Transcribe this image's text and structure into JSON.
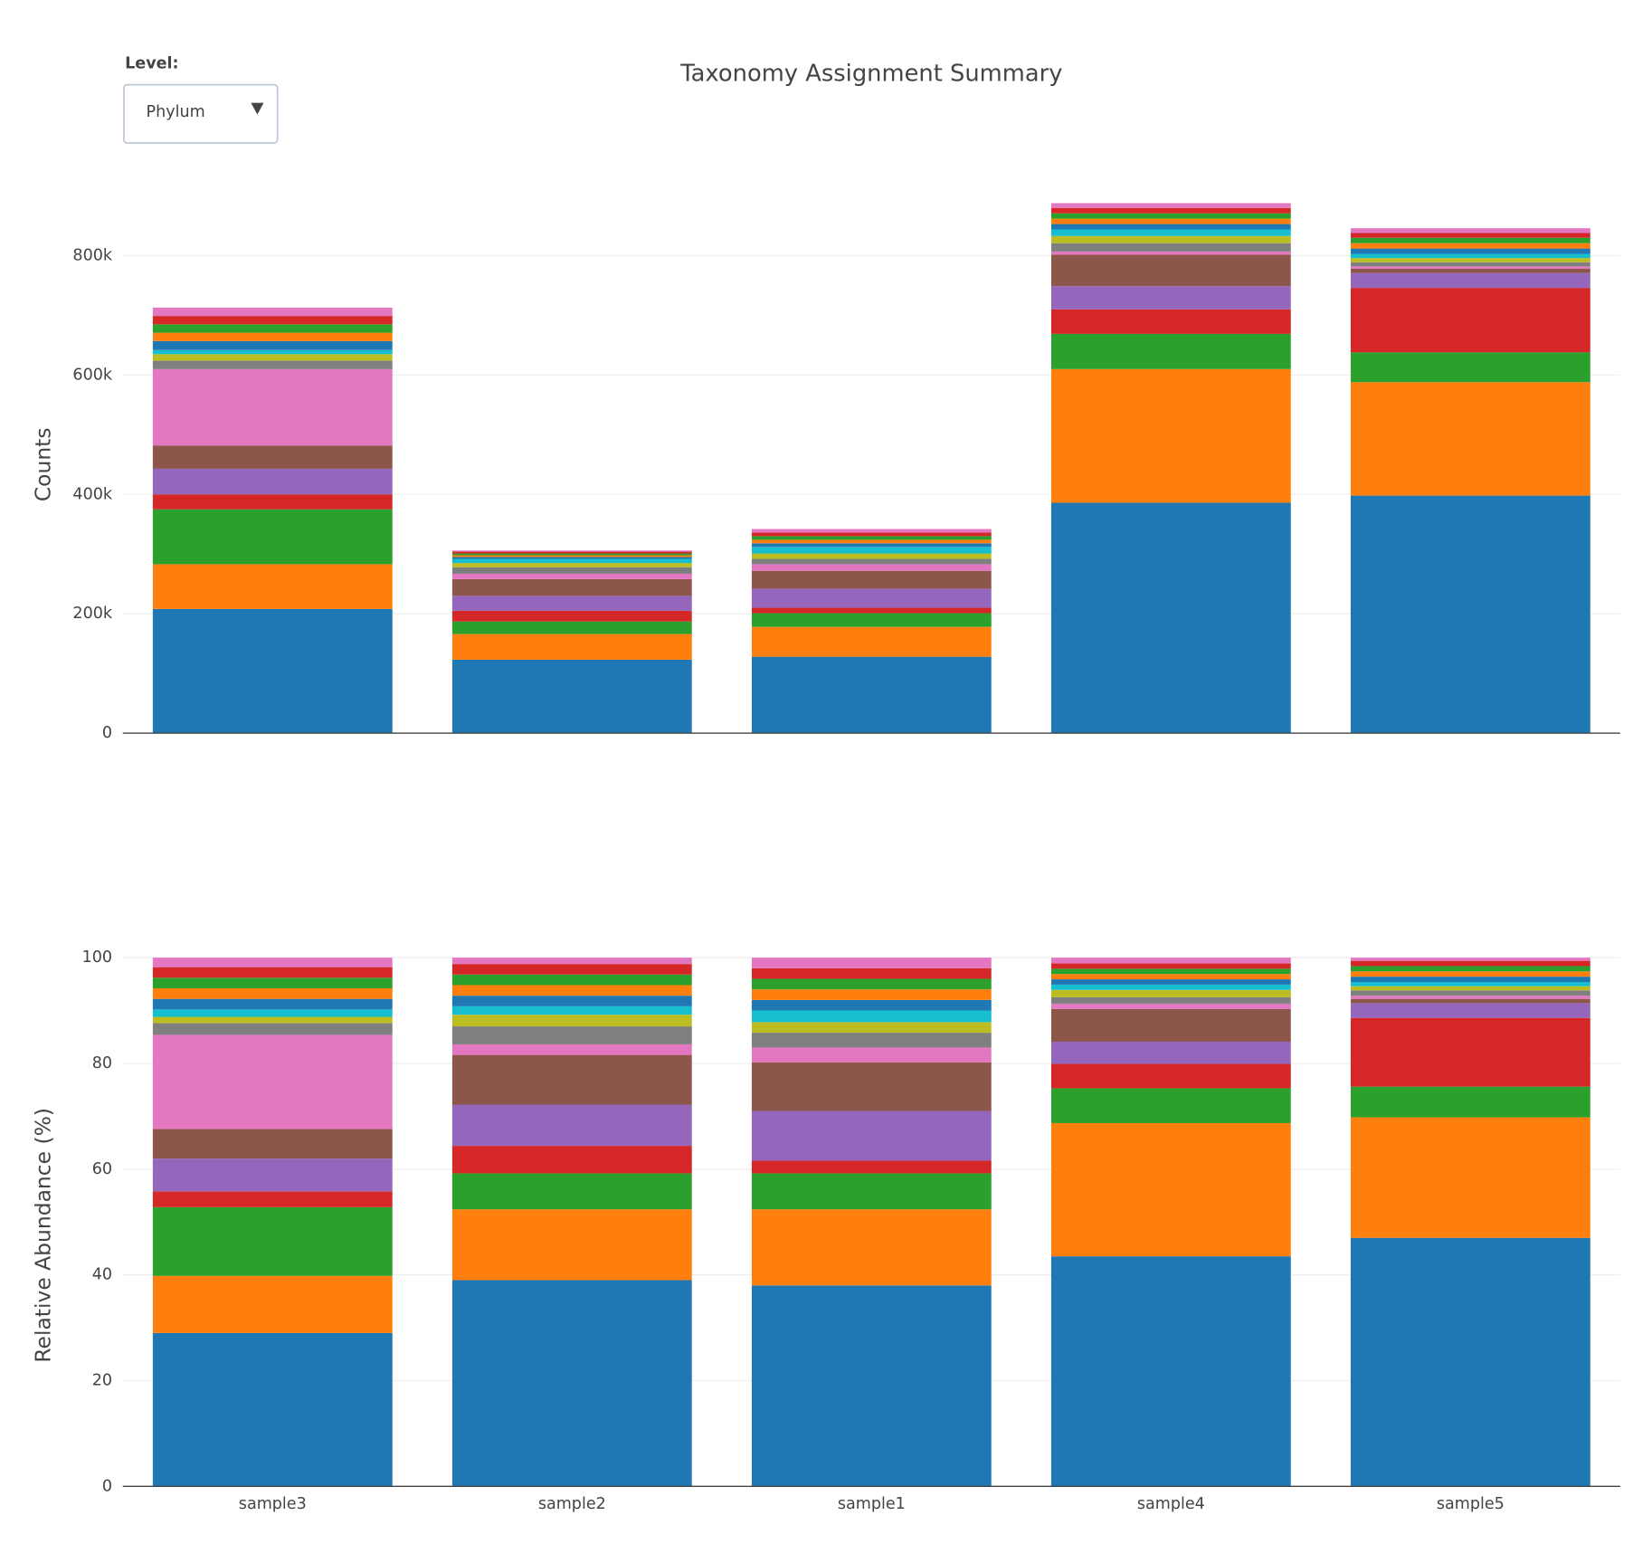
{
  "title": "Taxonomy Assignment Summary",
  "controls": {
    "label": "Level:",
    "value": "Phylum"
  },
  "chart_data": [
    {
      "type": "bar",
      "stacked": true,
      "y_label": "Counts",
      "ylim": [
        0,
        900000
      ],
      "yticks": [
        0,
        {
          "value": 200000,
          "label": "200k"
        },
        {
          "value": 400000,
          "label": "400k"
        },
        {
          "value": 600000,
          "label": "600k"
        },
        {
          "value": 800000,
          "label": "800k"
        }
      ],
      "grid": true,
      "series": [
        {
          "color": "#1f77b4",
          "values": [
            208000,
            123000,
            128000,
            386000,
            398000
          ]
        },
        {
          "color": "#ff7f0e",
          "values": [
            75000,
            43000,
            50000,
            224000,
            190000
          ]
        },
        {
          "color": "#2ca02c",
          "values": [
            92000,
            21000,
            23000,
            59000,
            50000
          ]
        },
        {
          "color": "#d62728",
          "values": [
            25000,
            18000,
            9000,
            41000,
            108000
          ]
        },
        {
          "color": "#9467bd",
          "values": [
            43000,
            25000,
            32000,
            39000,
            25000
          ]
        },
        {
          "color": "#8c564b",
          "values": [
            39000,
            28000,
            30000,
            53000,
            7000
          ]
        },
        {
          "color": "#e377c2",
          "values": [
            128000,
            9000,
            11000,
            5000,
            4000
          ]
        },
        {
          "color": "#7f7f7f",
          "values": [
            14000,
            11000,
            9000,
            14000,
            7000
          ]
        },
        {
          "color": "#bcbd22",
          "values": [
            11000,
            7000,
            9000,
            12000,
            7000
          ]
        },
        {
          "color": "#17becf",
          "values": [
            7000,
            7000,
            11000,
            11000,
            7000
          ]
        },
        {
          "color": "#1f77b4",
          "values": [
            15000,
            3000,
            6000,
            9000,
            9000
          ]
        },
        {
          "color": "#ff7f0e",
          "values": [
            14000,
            3000,
            6000,
            9000,
            9000
          ]
        },
        {
          "color": "#2ca02c",
          "values": [
            14000,
            3000,
            6000,
            9000,
            9000
          ]
        },
        {
          "color": "#d62728",
          "values": [
            14000,
            3000,
            6000,
            9000,
            8000
          ]
        },
        {
          "color": "#e377c2",
          "values": [
            14000,
            2000,
            6000,
            8000,
            8000
          ]
        }
      ]
    },
    {
      "type": "bar",
      "stacked": true,
      "y_label": "Relative Abundance (%)",
      "categories": [
        "sample3",
        "sample2",
        "sample1",
        "sample4",
        "sample5"
      ],
      "ylim": [
        0,
        105
      ],
      "yticks": [
        0,
        20,
        40,
        60,
        80,
        100
      ],
      "grid": true,
      "series": [
        {
          "color": "#1f77b4",
          "values": [
            29,
            39,
            38,
            43.5,
            47
          ]
        },
        {
          "color": "#ff7f0e",
          "values": [
            10.8,
            13.4,
            14.4,
            25.2,
            22.8
          ]
        },
        {
          "color": "#2ca02c",
          "values": [
            13,
            6.8,
            6.8,
            6.6,
            5.8
          ]
        },
        {
          "color": "#d62728",
          "values": [
            3,
            5.2,
            2.4,
            4.6,
            13
          ]
        },
        {
          "color": "#9467bd",
          "values": [
            6.2,
            7.8,
            9.4,
            4.2,
            2.8
          ]
        },
        {
          "color": "#8c564b",
          "values": [
            5.6,
            9.4,
            9.2,
            6.2,
            0.8
          ]
        },
        {
          "color": "#e377c2",
          "values": [
            17.8,
            2,
            2.8,
            1,
            0.6
          ]
        },
        {
          "color": "#7f7f7f",
          "values": [
            2.2,
            3.4,
            2.8,
            1.2,
            1
          ]
        },
        {
          "color": "#bcbd22",
          "values": [
            1.2,
            2.2,
            2,
            1.4,
            0.8
          ]
        },
        {
          "color": "#17becf",
          "values": [
            1.4,
            1.6,
            2.2,
            1,
            0.8
          ]
        },
        {
          "color": "#1f77b4",
          "values": [
            2,
            2,
            2,
            1,
            1
          ]
        },
        {
          "color": "#ff7f0e",
          "values": [
            2,
            2,
            2,
            1,
            1
          ]
        },
        {
          "color": "#2ca02c",
          "values": [
            2,
            2,
            2,
            1,
            1
          ]
        },
        {
          "color": "#d62728",
          "values": [
            2,
            2,
            2,
            1,
            1
          ]
        },
        {
          "color": "#e377c2",
          "values": [
            1.8,
            1.2,
            2,
            1.1,
            0.6
          ]
        }
      ]
    }
  ]
}
